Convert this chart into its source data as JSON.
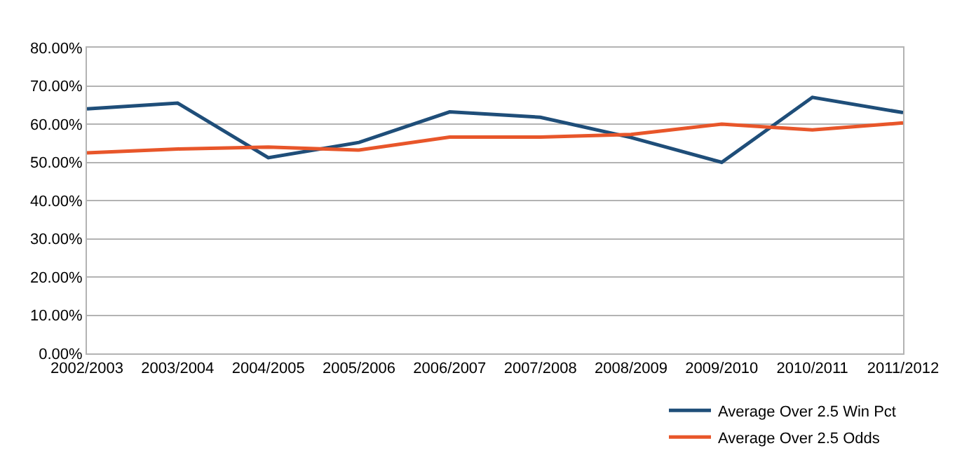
{
  "chart_data": {
    "type": "line",
    "categories": [
      "2002/2003",
      "2003/2004",
      "2004/2005",
      "2005/2006",
      "2006/2007",
      "2007/2008",
      "2008/2009",
      "2009/2010",
      "2010/2011",
      "2011/2012"
    ],
    "series": [
      {
        "name": "Average Over 2.5 Win Pct",
        "color": "#1f4e79",
        "values": [
          64,
          65.5,
          51.2,
          55.2,
          63.2,
          61.8,
          56.5,
          50,
          67,
          63
        ]
      },
      {
        "name": "Average Over 2.5 Odds",
        "color": "#e8562a",
        "values": [
          52.5,
          53.5,
          54,
          53.2,
          56.6,
          56.6,
          57.3,
          60,
          58.5,
          60.3
        ]
      }
    ],
    "ylim": [
      0,
      80
    ],
    "yticks": [
      {
        "value": 0,
        "label": "0.00%"
      },
      {
        "value": 10,
        "label": "10.00%"
      },
      {
        "value": 20,
        "label": "20.00%"
      },
      {
        "value": 30,
        "label": "30.00%"
      },
      {
        "value": 40,
        "label": "40.00%"
      },
      {
        "value": 50,
        "label": "50.00%"
      },
      {
        "value": 60,
        "label": "60.00%"
      },
      {
        "value": 70,
        "label": "70.00%"
      },
      {
        "value": 80,
        "label": "80.00%"
      }
    ],
    "grid": "y",
    "legend": "bottom right",
    "marker": "none",
    "line_style": "solid"
  }
}
